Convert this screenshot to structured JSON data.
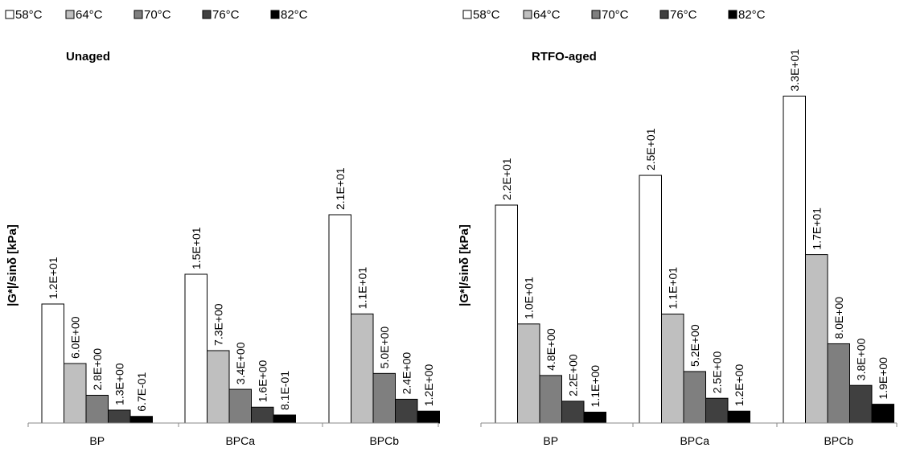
{
  "chart_data": [
    {
      "type": "bar",
      "title": "Unaged",
      "ylabel": "|G*|/sinδ [kPa]",
      "xlabel": "",
      "categories": [
        "BP",
        "BPCa",
        "BPCb"
      ],
      "legend_position": "top",
      "grid": false,
      "series": [
        {
          "name": "58°C",
          "color": "#ffffff",
          "values": [
            12,
            15,
            21
          ],
          "labels": [
            "1.2E+01",
            "1.5E+01",
            "2.1E+01"
          ]
        },
        {
          "name": "64°C",
          "color": "#bfbfbf",
          "values": [
            6.0,
            7.3,
            11
          ],
          "labels": [
            "6.0E+00",
            "7.3E+00",
            "1.1E+01"
          ]
        },
        {
          "name": "70°C",
          "color": "#7f7f7f",
          "values": [
            2.8,
            3.4,
            5.0
          ],
          "labels": [
            "2.8E+00",
            "3.4E+00",
            "5.0E+00"
          ]
        },
        {
          "name": "76°C",
          "color": "#404040",
          "values": [
            1.3,
            1.6,
            2.4
          ],
          "labels": [
            "1.3E+00",
            "1.6E+00",
            "2.4E+00"
          ]
        },
        {
          "name": "82°C",
          "color": "#000000",
          "values": [
            0.67,
            0.81,
            1.2
          ],
          "labels": [
            "6.7E-01",
            "8.1E-01",
            "1.2E+00"
          ]
        }
      ]
    },
    {
      "type": "bar",
      "title": "RTFO-aged",
      "ylabel": "|G*|/sinδ [kPa]",
      "xlabel": "",
      "categories": [
        "BP",
        "BPCa",
        "BPCb"
      ],
      "legend_position": "top",
      "grid": false,
      "series": [
        {
          "name": "58°C",
          "color": "#ffffff",
          "values": [
            22,
            25,
            33
          ],
          "labels": [
            "2.2E+01",
            "2.5E+01",
            "3.3E+01"
          ]
        },
        {
          "name": "64°C",
          "color": "#bfbfbf",
          "values": [
            10,
            11,
            17
          ],
          "labels": [
            "1.0E+01",
            "1.1E+01",
            "1.7E+01"
          ]
        },
        {
          "name": "70°C",
          "color": "#7f7f7f",
          "values": [
            4.8,
            5.2,
            8.0
          ],
          "labels": [
            "4.8E+00",
            "5.2E+00",
            "8.0E+00"
          ]
        },
        {
          "name": "76°C",
          "color": "#404040",
          "values": [
            2.2,
            2.5,
            3.8
          ],
          "labels": [
            "2.2E+00",
            "2.5E+00",
            "3.8E+00"
          ]
        },
        {
          "name": "82°C",
          "color": "#000000",
          "values": [
            1.1,
            1.2,
            1.9
          ],
          "labels": [
            "1.1E+00",
            "1.2E+00",
            "1.9E+00"
          ]
        }
      ]
    }
  ]
}
